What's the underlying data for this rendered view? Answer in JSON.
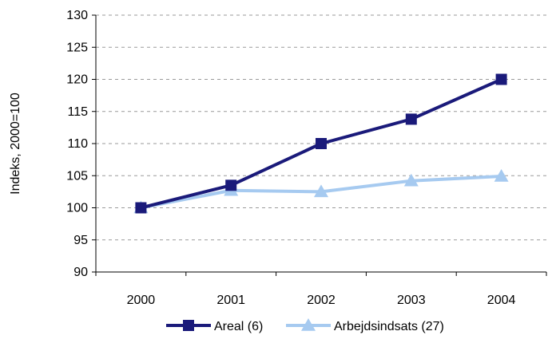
{
  "chart_data": {
    "type": "line",
    "title": "",
    "xlabel": "",
    "ylabel": "Indeks, 2000=100",
    "x": [
      "2000",
      "2001",
      "2002",
      "2003",
      "2004"
    ],
    "ylim": [
      90,
      130
    ],
    "yticks": [
      90,
      95,
      100,
      105,
      110,
      115,
      120,
      125,
      130
    ],
    "grid": "horizontal dashed",
    "legend_position": "bottom",
    "series": [
      {
        "name": "Areal (6)",
        "values": [
          100,
          103.5,
          110,
          113.8,
          120
        ],
        "color": "#1a1a7a",
        "marker": "square"
      },
      {
        "name": "Arbejdsindsats (27)",
        "values": [
          100,
          102.7,
          102.5,
          104.2,
          104.9
        ],
        "color": "#a6caf0",
        "marker": "triangle"
      }
    ]
  }
}
